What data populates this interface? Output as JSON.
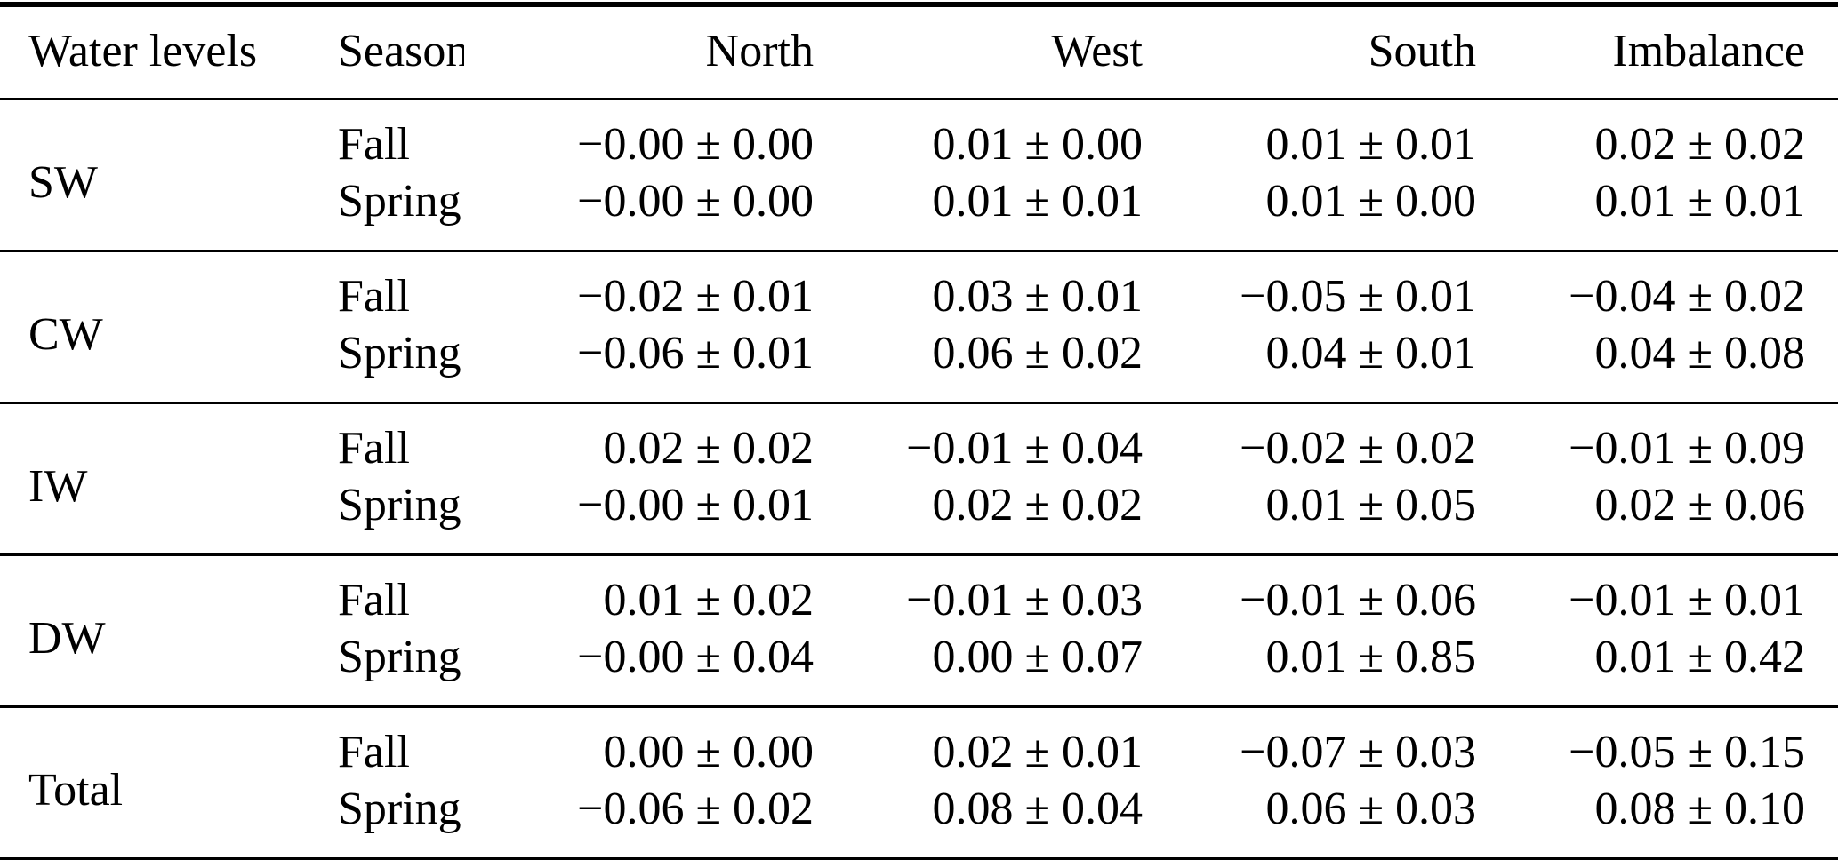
{
  "page": {
    "background_color": "#ffffff",
    "text_color": "#000000",
    "rule_color": "#000000"
  },
  "table": {
    "columns": [
      {
        "label": "Water levels",
        "align": "left"
      },
      {
        "label": "Season",
        "align": "left"
      },
      {
        "label": "North",
        "align": "right"
      },
      {
        "label": "West",
        "align": "right"
      },
      {
        "label": "South",
        "align": "right"
      },
      {
        "label": "Imbalance",
        "align": "right"
      }
    ],
    "groups": [
      {
        "water_level": "SW",
        "rows": [
          {
            "season": "Fall",
            "values": [
              "−0.00 ± 0.00",
              "0.01 ± 0.00",
              "0.01 ± 0.01",
              "0.02 ± 0.02"
            ]
          },
          {
            "season": "Spring",
            "values": [
              "−0.00 ± 0.00",
              "0.01 ± 0.01",
              "0.01 ± 0.00",
              "0.01 ± 0.01"
            ]
          }
        ]
      },
      {
        "water_level": "CW",
        "rows": [
          {
            "season": "Fall",
            "values": [
              "−0.02 ± 0.01",
              "0.03 ± 0.01",
              "−0.05 ± 0.01",
              "−0.04 ± 0.02"
            ]
          },
          {
            "season": "Spring",
            "values": [
              "−0.06 ± 0.01",
              "0.06 ± 0.02",
              "0.04 ± 0.01",
              "0.04 ± 0.08"
            ]
          }
        ]
      },
      {
        "water_level": "IW",
        "rows": [
          {
            "season": "Fall",
            "values": [
              "0.02 ± 0.02",
              "−0.01 ± 0.04",
              "−0.02 ± 0.02",
              "−0.01 ± 0.09"
            ]
          },
          {
            "season": "Spring",
            "values": [
              "−0.00 ± 0.01",
              "0.02 ± 0.02",
              "0.01 ± 0.05",
              "0.02 ± 0.06"
            ]
          }
        ]
      },
      {
        "water_level": "DW",
        "rows": [
          {
            "season": "Fall",
            "values": [
              "0.01 ± 0.02",
              "−0.01 ± 0.03",
              "−0.01 ± 0.06",
              "−0.01 ± 0.01"
            ]
          },
          {
            "season": "Spring",
            "values": [
              "−0.00 ± 0.04",
              "0.00 ± 0.07",
              "0.01 ± 0.85",
              "0.01 ± 0.42"
            ]
          }
        ]
      },
      {
        "water_level": "Total",
        "rows": [
          {
            "season": "Fall",
            "values": [
              "0.00 ± 0.00",
              "0.02 ± 0.01",
              "−0.07 ± 0.03",
              "−0.05 ± 0.15"
            ]
          },
          {
            "season": "Spring",
            "values": [
              "−0.06 ± 0.02",
              "0.08 ± 0.04",
              "0.06 ± 0.03",
              "0.08 ± 0.10"
            ]
          }
        ]
      }
    ]
  },
  "chart_data": {
    "type": "table",
    "columns": [
      "Water levels",
      "Season",
      "North",
      "West",
      "South",
      "Imbalance"
    ],
    "rows": [
      [
        "SW",
        "Fall",
        "−0.00 ± 0.00",
        "0.01 ± 0.00",
        "0.01 ± 0.01",
        "0.02 ± 0.02"
      ],
      [
        "SW",
        "Spring",
        "−0.00 ± 0.00",
        "0.01 ± 0.01",
        "0.01 ± 0.00",
        "0.01 ± 0.01"
      ],
      [
        "CW",
        "Fall",
        "−0.02 ± 0.01",
        "0.03 ± 0.01",
        "−0.05 ± 0.01",
        "−0.04 ± 0.02"
      ],
      [
        "CW",
        "Spring",
        "−0.06 ± 0.01",
        "0.06 ± 0.02",
        "0.04 ± 0.01",
        "0.04 ± 0.08"
      ],
      [
        "IW",
        "Fall",
        "0.02 ± 0.02",
        "−0.01 ± 0.04",
        "−0.02 ± 0.02",
        "−0.01 ± 0.09"
      ],
      [
        "IW",
        "Spring",
        "−0.00 ± 0.01",
        "0.02 ± 0.02",
        "0.01 ± 0.05",
        "0.02 ± 0.06"
      ],
      [
        "DW",
        "Fall",
        "0.01 ± 0.02",
        "−0.01 ± 0.03",
        "−0.01 ± 0.06",
        "−0.01 ± 0.01"
      ],
      [
        "DW",
        "Spring",
        "−0.00 ± 0.04",
        "0.00 ± 0.07",
        "0.01 ± 0.85",
        "0.01 ± 0.42"
      ],
      [
        "Total",
        "Fall",
        "0.00 ± 0.00",
        "0.02 ± 0.01",
        "−0.07 ± 0.03",
        "−0.05 ± 0.15"
      ],
      [
        "Total",
        "Spring",
        "−0.06 ± 0.02",
        "0.08 ± 0.04",
        "0.06 ± 0.03",
        "0.08 ± 0.10"
      ]
    ]
  }
}
